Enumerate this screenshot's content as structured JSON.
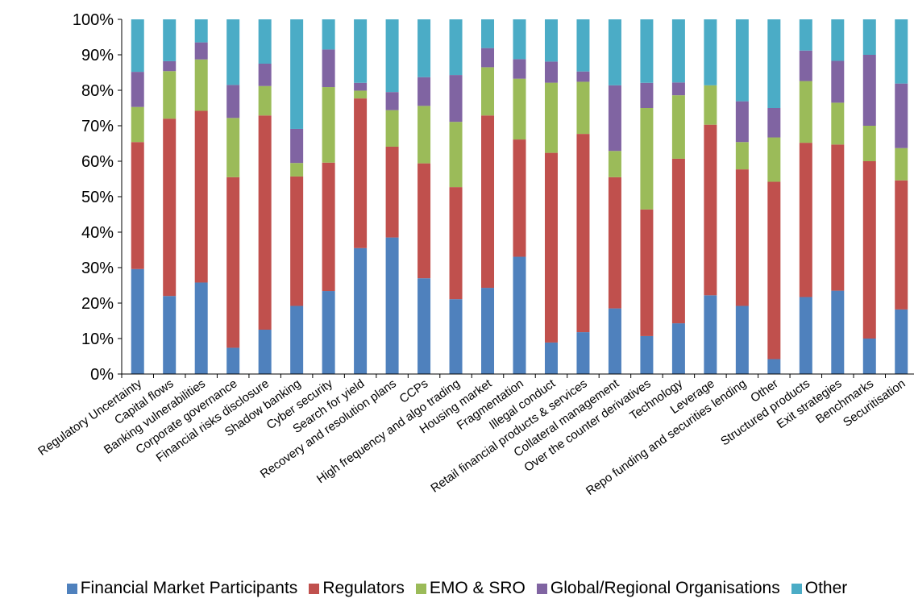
{
  "chart_data": {
    "type": "bar",
    "stacked": true,
    "percent_stacked": true,
    "categories": [
      "Regulatory Uncertainty",
      "Capital flows",
      "Banking vulnerabilities",
      "Corporate governance",
      "Financial risks disclosure",
      "Shadow banking",
      "Cyber security",
      "Search for yield",
      "Recovery and resolution plans",
      "CCPs",
      "High frequency and algo trading",
      "Housing market",
      "Fragmentation",
      "Illegal conduct",
      "Retail financial products & services",
      "Collateral management",
      "Over the counter derivatives",
      "Technology",
      "Leverage",
      "Repo funding and securities lending",
      "Other",
      "Structured products",
      "Exit strategies",
      "Benchmarks",
      "Securitisation"
    ],
    "series": [
      {
        "name": "Financial Market Participants",
        "color": "#4f81bd",
        "values": [
          29.6,
          22.0,
          25.8,
          7.4,
          12.5,
          19.2,
          23.4,
          35.5,
          38.5,
          27.0,
          21.1,
          24.3,
          32.4,
          8.8,
          11.8,
          18.5,
          10.7,
          14.3,
          22.2,
          19.2,
          4.2,
          21.7,
          23.5,
          10.0,
          18.2
        ]
      },
      {
        "name": "Regulators",
        "color": "#c0504d",
        "values": [
          35.8,
          50.0,
          48.4,
          48.1,
          60.4,
          36.5,
          36.2,
          42.2,
          25.6,
          32.4,
          31.6,
          48.6,
          32.4,
          53.0,
          55.9,
          37.0,
          35.7,
          46.4,
          48.1,
          38.5,
          50.0,
          43.5,
          41.2,
          50.0,
          36.4
        ]
      },
      {
        "name": "EMO & SRO",
        "color": "#9bbb59",
        "values": [
          9.9,
          13.4,
          14.5,
          16.7,
          8.3,
          3.8,
          21.3,
          2.2,
          10.3,
          16.2,
          18.4,
          13.6,
          16.8,
          19.6,
          14.7,
          7.4,
          28.6,
          17.9,
          11.1,
          7.7,
          12.5,
          17.4,
          11.8,
          10.0,
          9.1
        ]
      },
      {
        "name": "Global/Regional Organisations",
        "color": "#8064a2",
        "values": [
          9.9,
          2.8,
          4.8,
          9.3,
          6.3,
          9.6,
          10.6,
          2.2,
          5.1,
          8.1,
          13.2,
          5.4,
          5.4,
          5.9,
          2.9,
          18.5,
          7.1,
          3.6,
          0.0,
          11.5,
          8.3,
          8.6,
          11.8,
          20.0,
          18.2
        ]
      },
      {
        "name": "Other",
        "color": "#4bacc6",
        "values": [
          14.8,
          11.8,
          6.5,
          18.5,
          12.5,
          30.9,
          8.5,
          17.9,
          20.5,
          16.3,
          15.7,
          8.1,
          11.0,
          11.8,
          14.7,
          18.6,
          17.9,
          17.8,
          18.6,
          23.1,
          25.0,
          8.8,
          11.7,
          10.0,
          18.1
        ]
      }
    ],
    "y_ticks": [
      "0%",
      "10%",
      "20%",
      "30%",
      "40%",
      "50%",
      "60%",
      "70%",
      "80%",
      "90%",
      "100%"
    ],
    "ylim": [
      0,
      100
    ],
    "grid": false,
    "legend_position": "bottom",
    "title": "",
    "xlabel": "",
    "ylabel": ""
  }
}
